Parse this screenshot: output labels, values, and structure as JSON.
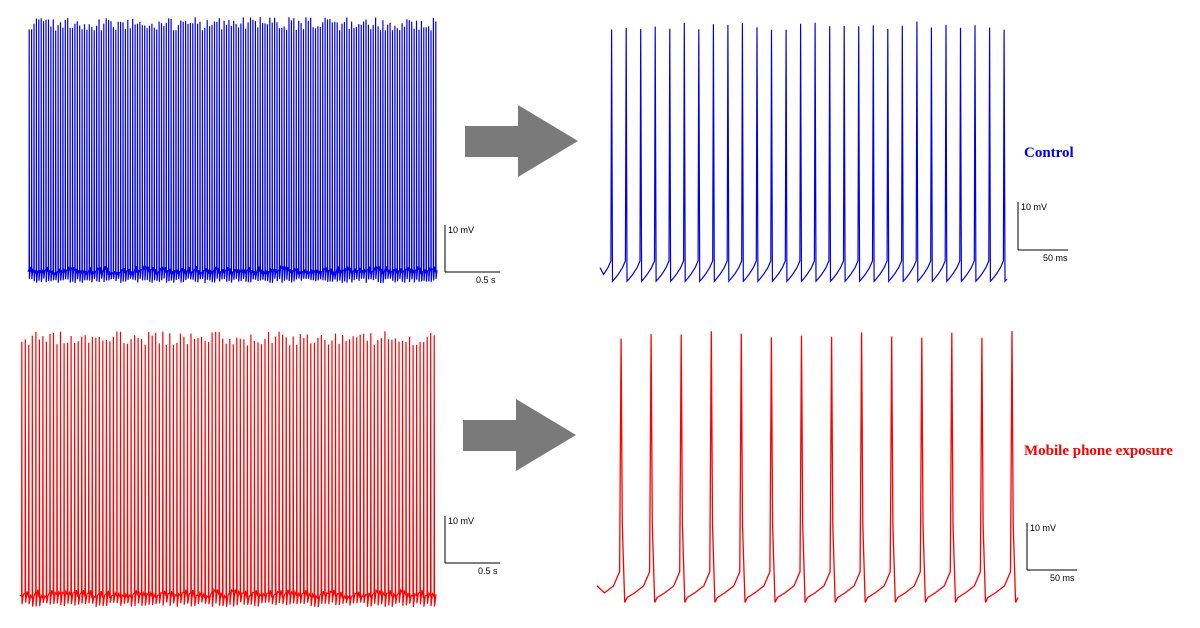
{
  "colors": {
    "control": "#0000ee",
    "exposure": "#ff0000",
    "arrow": "#7a7a7a",
    "scalebar": "#000000"
  },
  "icons": {
    "arrow": "right-arrow-icon"
  },
  "chart_data": [
    {
      "type": "line",
      "condition": "Control",
      "view": "overview",
      "scalebar": {
        "y_label": "10 mV",
        "x_label": "0.5 s",
        "y_value": 10,
        "y_unit": "mV",
        "x_value": 0.5,
        "x_unit": "s"
      },
      "y_range_mV": [
        -40,
        82
      ],
      "spike_count": 170,
      "baseline_mV": -35,
      "peak_mV": 78
    },
    {
      "type": "line",
      "condition": "Control",
      "view": "zoomed",
      "label": "Control",
      "scalebar": {
        "y_label": "10 mV",
        "x_label": "50 ms",
        "y_value": 10,
        "y_unit": "mV",
        "x_value": 50,
        "x_unit": "ms"
      },
      "y_range_mV": [
        -40,
        82
      ],
      "spike_count": 28,
      "baseline_mV": -35,
      "peak_mV": 78
    },
    {
      "type": "line",
      "condition": "Mobile phone exposure",
      "view": "overview",
      "scalebar": {
        "y_label": "10 mV",
        "x_label": "0.5 s",
        "y_value": 10,
        "y_unit": "mV",
        "x_value": 0.5,
        "x_unit": "s"
      },
      "y_range_mV": [
        -40,
        82
      ],
      "spike_count": 118,
      "baseline_mV": -38,
      "peak_mV": 75
    },
    {
      "type": "line",
      "condition": "Mobile phone exposure",
      "view": "zoomed",
      "label": "Mobile phone exposure",
      "scalebar": {
        "y_label": "10 mV",
        "x_label": "50 ms",
        "y_value": 10,
        "y_unit": "mV",
        "x_value": 50,
        "x_unit": "ms"
      },
      "y_range_mV": [
        -40,
        82
      ],
      "spike_count": 14,
      "baseline_mV": -38,
      "peak_mV": 75
    }
  ]
}
